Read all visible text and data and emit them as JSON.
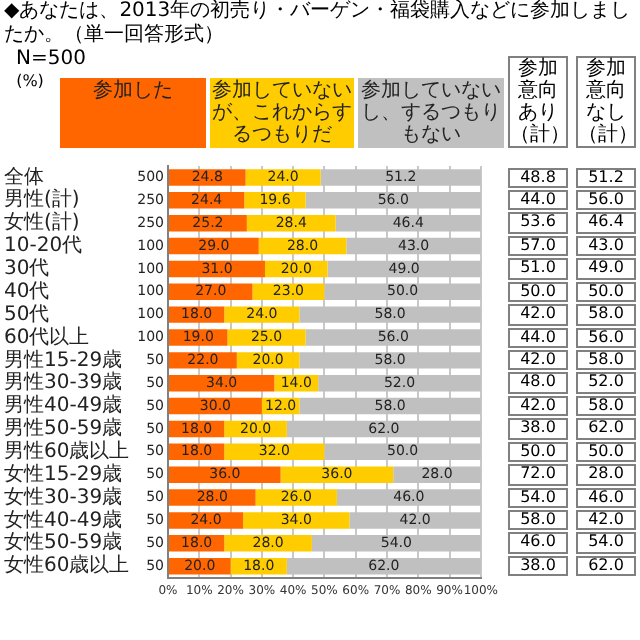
{
  "chart_data": {
    "type": "bar",
    "orientation": "horizontal",
    "stacked": true,
    "title": "◆あなたは、2013年の初売り・バーゲン・福袋購入などに参加しましたか。（単一回答形式）",
    "subtitle": "N=500",
    "annotations": [
      "(%)",
      "参加意向あり（計）",
      "参加意向なし（計）",
      "48.8",
      "51.2",
      "44.0",
      "56.0",
      "53.6",
      "46.4",
      "57.0",
      "43.0",
      "51.0",
      "49.0",
      "50.0",
      "50.0",
      "42.0",
      "58.0",
      "44.0",
      "56.0",
      "42.0",
      "58.0",
      "48.0",
      "52.0",
      "42.0",
      "58.0",
      "38.0",
      "62.0",
      "50.0",
      "50.0",
      "72.0",
      "28.0",
      "54.0",
      "46.0",
      "58.0",
      "42.0",
      "46.0",
      "54.0",
      "38.0",
      "62.0"
    ],
    "categories": [
      "全体",
      "男性(計)",
      "女性(計)",
      "10-20代",
      "30代",
      "40代",
      "50代",
      "60代以上",
      "男性15-29歳",
      "男性30-39歳",
      "男性40-49歳",
      "男性50-59歳",
      "男性60歳以上",
      "女性15-29歳",
      "女性30-39歳",
      "女性40-49歳",
      "女性50-59歳",
      "女性60歳以上"
    ],
    "y2_categories": [
      "500",
      "250",
      "250",
      "100",
      "100",
      "100",
      "100",
      "100",
      "50",
      "50",
      "50",
      "50",
      "50",
      "50",
      "50",
      "50",
      "50",
      "50"
    ],
    "series": [
      {
        "name": "参加した",
        "color": "#ff6600",
        "values": [
          24.8,
          24.4,
          25.2,
          29,
          31,
          27,
          18,
          19,
          22,
          34,
          30,
          18,
          18,
          36,
          28,
          24,
          18,
          20
        ],
        "value_labels": [
          "24.8",
          "24.4",
          "25.2",
          "29.0",
          "31.0",
          "27.0",
          "18.0",
          "19.0",
          "22.0",
          "34.0",
          "30.0",
          "18.0",
          "18.0",
          "36.0",
          "28.0",
          "24.0",
          "18.0",
          "20.0"
        ]
      },
      {
        "name": "参加していないが、これからするつもりだ",
        "color": "#ffcc00",
        "values": [
          24.0,
          19.6,
          28.4,
          28,
          20,
          23,
          24,
          25,
          20,
          14,
          12,
          20,
          32,
          36,
          26,
          34,
          28,
          18
        ],
        "value_labels": [
          "24.0",
          "19.6",
          "28.4",
          "28.0",
          "20.0",
          "23.0",
          "24.0",
          "25.0",
          "20.0",
          "14.0",
          "12.0",
          "20.0",
          "32.0",
          "36.0",
          "26.0",
          "34.0",
          "28.0",
          "18.0"
        ]
      },
      {
        "name": "参加していないし、するつもりもない",
        "color": "#c0c0c0",
        "values": [
          51.2,
          56,
          46.4,
          43,
          49,
          50,
          58,
          56,
          58,
          52,
          58,
          62,
          50,
          28,
          46,
          42,
          54,
          62
        ],
        "value_labels": [
          "51.2",
          "56.0",
          "46.4",
          "43.0",
          "49.0",
          "50.0",
          "58.0",
          "56.0",
          "58.0",
          "52.0",
          "58.0",
          "62.0",
          "50.0",
          "28.0",
          "46.0",
          "42.0",
          "54.0",
          "62.0"
        ]
      }
    ],
    "xlim": [
      0,
      100
    ],
    "xticks": [
      {
        "value": 0,
        "label": "0%"
      },
      {
        "value": 10,
        "label": "10%"
      },
      {
        "value": 20,
        "label": "20%"
      },
      {
        "value": 30,
        "label": "30%"
      },
      {
        "value": 40,
        "label": "40%"
      },
      {
        "value": 50,
        "label": "50%"
      },
      {
        "value": 60,
        "label": "60%"
      },
      {
        "value": 70,
        "label": "70%"
      },
      {
        "value": 80,
        "label": "80%"
      },
      {
        "value": 90,
        "label": "90%"
      },
      {
        "value": 100,
        "label": "100%"
      }
    ],
    "grid": "x",
    "legend": "top"
  }
}
